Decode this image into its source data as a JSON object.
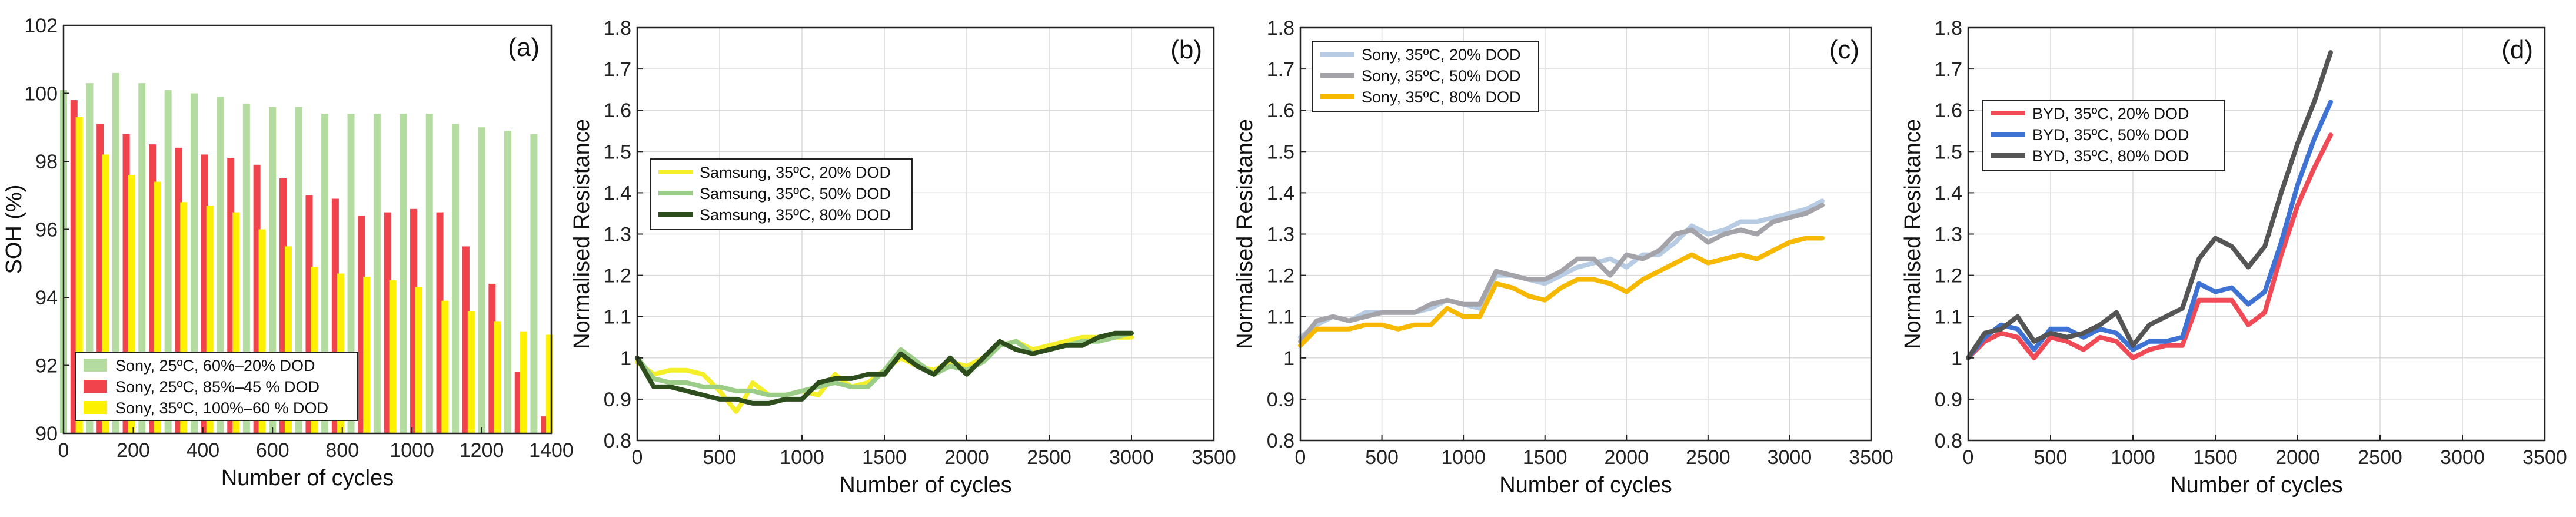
{
  "chart_data": [
    {
      "type": "bar",
      "panel_label": "(a)",
      "xlabel": "Number of cycles",
      "ylabel": "SOH (%)",
      "xlim": [
        0,
        1400
      ],
      "ylim": [
        90,
        102
      ],
      "xticks": [
        0,
        200,
        400,
        600,
        800,
        1000,
        1200,
        1400
      ],
      "yticks": [
        90,
        92,
        94,
        96,
        98,
        100,
        102
      ],
      "legend_position": "bottom-left",
      "series": [
        {
          "name": "Sony, 25ºC, 60%–20% DOD",
          "color": "#b5dca0",
          "x": [
            0,
            75,
            150,
            225,
            300,
            375,
            450,
            525,
            600,
            675,
            750,
            825,
            900,
            975,
            1050,
            1125,
            1200,
            1275,
            1350
          ],
          "values": [
            100.1,
            100.3,
            100.6,
            100.3,
            100.1,
            100.0,
            99.9,
            99.7,
            99.6,
            99.6,
            99.4,
            99.4,
            99.4,
            99.4,
            99.4,
            99.1,
            99.0,
            98.9,
            98.8
          ]
        },
        {
          "name": "Sony, 25ºC, 85%–45 % DOD",
          "color": "#f0434b",
          "x": [
            30,
            105,
            180,
            255,
            330,
            405,
            480,
            555,
            630,
            705,
            780,
            855,
            930,
            1005,
            1080,
            1155,
            1230,
            1305,
            1380
          ],
          "values": [
            99.8,
            99.1,
            98.8,
            98.5,
            98.4,
            98.2,
            98.1,
            97.9,
            97.5,
            97.0,
            96.9,
            96.4,
            96.5,
            96.6,
            96.5,
            95.5,
            94.4,
            91.8,
            90.5
          ]
        },
        {
          "name": "Sony, 35ºC, 100%–60 % DOD",
          "color": "#fdf000",
          "x": [
            45,
            120,
            195,
            270,
            345,
            420,
            495,
            570,
            645,
            720,
            795,
            870,
            945,
            1020,
            1095,
            1170,
            1245,
            1320,
            1395
          ],
          "values": [
            99.3,
            98.2,
            97.6,
            97.4,
            96.8,
            96.7,
            96.5,
            96.0,
            95.5,
            94.9,
            94.7,
            94.6,
            94.5,
            94.3,
            93.9,
            93.6,
            93.3,
            93.0,
            92.9
          ]
        }
      ]
    },
    {
      "type": "line",
      "panel_label": "(b)",
      "xlabel": "Number of cycles",
      "ylabel": "Normalised Resistance",
      "xlim": [
        0,
        3500
      ],
      "ylim": [
        0.8,
        1.8
      ],
      "xticks": [
        0,
        500,
        1000,
        1500,
        2000,
        2500,
        3000,
        3500
      ],
      "yticks": [
        0.8,
        0.9,
        1,
        1.1,
        1.2,
        1.3,
        1.4,
        1.5,
        1.6,
        1.7,
        1.8
      ],
      "legend_position": "middle-left",
      "series": [
        {
          "name": "Samsung, 35ºC, 20% DOD",
          "color": "#f5ef2a",
          "x": [
            0,
            100,
            200,
            300,
            400,
            500,
            600,
            650,
            700,
            800,
            900,
            1000,
            1100,
            1200,
            1300,
            1400,
            1500,
            1600,
            1700,
            1800,
            1900,
            2000,
            2100,
            2200,
            2300,
            2400,
            2500,
            2600,
            2700,
            2800,
            2900,
            3000
          ],
          "values": [
            0.99,
            0.96,
            0.97,
            0.97,
            0.96,
            0.92,
            0.87,
            0.9,
            0.94,
            0.91,
            0.91,
            0.92,
            0.91,
            0.96,
            0.93,
            0.94,
            0.97,
            1.0,
            0.98,
            0.97,
            0.99,
            0.98,
            1.0,
            1.03,
            1.04,
            1.02,
            1.03,
            1.04,
            1.05,
            1.05,
            1.05,
            1.05
          ]
        },
        {
          "name": "Samsung, 35ºC, 50% DOD",
          "color": "#9bcc88",
          "x": [
            0,
            100,
            200,
            300,
            400,
            500,
            600,
            700,
            800,
            900,
            1000,
            1100,
            1200,
            1300,
            1400,
            1500,
            1600,
            1700,
            1800,
            1900,
            2000,
            2100,
            2200,
            2300,
            2400,
            2500,
            2600,
            2700,
            2800,
            2900,
            3000
          ],
          "values": [
            1.0,
            0.95,
            0.94,
            0.94,
            0.93,
            0.93,
            0.92,
            0.92,
            0.91,
            0.91,
            0.92,
            0.93,
            0.94,
            0.93,
            0.93,
            0.97,
            1.02,
            0.99,
            0.96,
            0.98,
            0.97,
            0.99,
            1.03,
            1.04,
            1.01,
            1.02,
            1.03,
            1.04,
            1.04,
            1.05,
            1.06
          ]
        },
        {
          "name": "Samsung, 35ºC, 80% DOD",
          "color": "#2e4d1c",
          "x": [
            0,
            100,
            200,
            300,
            400,
            500,
            600,
            700,
            800,
            900,
            1000,
            1100,
            1200,
            1300,
            1400,
            1500,
            1600,
            1700,
            1800,
            1900,
            2000,
            2100,
            2200,
            2300,
            2400,
            2500,
            2600,
            2700,
            2800,
            2900,
            3000
          ],
          "values": [
            1.0,
            0.93,
            0.93,
            0.92,
            0.91,
            0.9,
            0.9,
            0.89,
            0.89,
            0.9,
            0.9,
            0.94,
            0.95,
            0.95,
            0.96,
            0.96,
            1.01,
            0.98,
            0.96,
            1.0,
            0.96,
            1.0,
            1.04,
            1.02,
            1.01,
            1.02,
            1.03,
            1.03,
            1.05,
            1.06,
            1.06
          ]
        }
      ]
    },
    {
      "type": "line",
      "panel_label": "(c)",
      "xlabel": "Number of cycles",
      "ylabel": "Normalised Resistance",
      "xlim": [
        0,
        3500
      ],
      "ylim": [
        0.8,
        1.8
      ],
      "xticks": [
        0,
        500,
        1000,
        1500,
        2000,
        2500,
        3000,
        3500
      ],
      "yticks": [
        0.8,
        0.9,
        1,
        1.1,
        1.2,
        1.3,
        1.4,
        1.5,
        1.6,
        1.7,
        1.8
      ],
      "legend_position": "top-left",
      "series": [
        {
          "name": "Sony, 35ºC, 20% DOD",
          "color": "#b7cce3",
          "x": [
            0,
            100,
            200,
            300,
            400,
            500,
            600,
            700,
            800,
            900,
            1000,
            1100,
            1200,
            1300,
            1400,
            1500,
            1600,
            1700,
            1800,
            1900,
            2000,
            2100,
            2200,
            2300,
            2400,
            2500,
            2600,
            2700,
            2800,
            2900,
            3000,
            3100,
            3200
          ],
          "values": [
            1.05,
            1.08,
            1.1,
            1.09,
            1.11,
            1.11,
            1.11,
            1.11,
            1.12,
            1.14,
            1.13,
            1.12,
            1.2,
            1.2,
            1.19,
            1.18,
            1.2,
            1.22,
            1.23,
            1.24,
            1.22,
            1.25,
            1.25,
            1.28,
            1.32,
            1.3,
            1.31,
            1.33,
            1.33,
            1.34,
            1.35,
            1.36,
            1.38
          ]
        },
        {
          "name": "Sony, 35ºC, 50% DOD",
          "color": "#a3a3a9",
          "x": [
            0,
            100,
            200,
            300,
            400,
            500,
            600,
            700,
            800,
            900,
            1000,
            1100,
            1200,
            1300,
            1400,
            1500,
            1600,
            1700,
            1800,
            1900,
            2000,
            2100,
            2200,
            2300,
            2400,
            2500,
            2600,
            2700,
            2800,
            2900,
            3000,
            3100,
            3200
          ],
          "values": [
            1.04,
            1.09,
            1.1,
            1.09,
            1.1,
            1.11,
            1.11,
            1.11,
            1.13,
            1.14,
            1.13,
            1.13,
            1.21,
            1.2,
            1.19,
            1.19,
            1.21,
            1.24,
            1.24,
            1.2,
            1.25,
            1.24,
            1.26,
            1.3,
            1.31,
            1.28,
            1.3,
            1.31,
            1.3,
            1.33,
            1.34,
            1.35,
            1.37
          ]
        },
        {
          "name": "Sony, 35ºC, 80% DOD",
          "color": "#f7b800",
          "x": [
            0,
            100,
            200,
            300,
            400,
            500,
            600,
            700,
            800,
            900,
            1000,
            1100,
            1200,
            1300,
            1400,
            1500,
            1600,
            1700,
            1800,
            1900,
            2000,
            2100,
            2200,
            2300,
            2400,
            2500,
            2600,
            2700,
            2800,
            2900,
            3000,
            3100,
            3200
          ],
          "values": [
            1.03,
            1.07,
            1.07,
            1.07,
            1.08,
            1.08,
            1.07,
            1.08,
            1.08,
            1.12,
            1.1,
            1.1,
            1.18,
            1.17,
            1.15,
            1.14,
            1.17,
            1.19,
            1.19,
            1.18,
            1.16,
            1.19,
            1.21,
            1.23,
            1.25,
            1.23,
            1.24,
            1.25,
            1.24,
            1.26,
            1.28,
            1.29,
            1.29
          ]
        }
      ]
    },
    {
      "type": "line",
      "panel_label": "(d)",
      "xlabel": "Number of cycles",
      "ylabel": "Normalised Resistance",
      "xlim": [
        0,
        3500
      ],
      "ylim": [
        0.8,
        1.8
      ],
      "xticks": [
        0,
        500,
        1000,
        1500,
        2000,
        2500,
        3000,
        3500
      ],
      "yticks": [
        0.8,
        0.9,
        1,
        1.1,
        1.2,
        1.3,
        1.4,
        1.5,
        1.6,
        1.7,
        1.8
      ],
      "legend_position": "top-left",
      "series": [
        {
          "name": "BYD, 35ºC, 20% DOD",
          "color": "#ef4a55",
          "x": [
            0,
            100,
            200,
            300,
            400,
            500,
            600,
            700,
            800,
            900,
            1000,
            1100,
            1200,
            1300,
            1400,
            1500,
            1600,
            1700,
            1800,
            1900,
            2000,
            2100,
            2200
          ],
          "values": [
            1.0,
            1.04,
            1.06,
            1.05,
            1.0,
            1.05,
            1.04,
            1.02,
            1.05,
            1.04,
            1.0,
            1.02,
            1.03,
            1.03,
            1.14,
            1.14,
            1.14,
            1.08,
            1.11,
            1.25,
            1.37,
            1.46,
            1.54
          ]
        },
        {
          "name": "BYD, 35ºC, 50% DOD",
          "color": "#3f73d3",
          "x": [
            0,
            100,
            200,
            300,
            400,
            500,
            600,
            700,
            800,
            900,
            1000,
            1100,
            1200,
            1300,
            1400,
            1500,
            1600,
            1700,
            1800,
            1900,
            2000,
            2100,
            2200
          ],
          "values": [
            1.0,
            1.05,
            1.08,
            1.07,
            1.02,
            1.07,
            1.07,
            1.05,
            1.07,
            1.06,
            1.02,
            1.04,
            1.04,
            1.05,
            1.18,
            1.16,
            1.17,
            1.13,
            1.16,
            1.28,
            1.42,
            1.53,
            1.62
          ]
        },
        {
          "name": "BYD, 35ºC, 80% DOD",
          "color": "#555555",
          "x": [
            0,
            100,
            200,
            300,
            400,
            500,
            600,
            700,
            800,
            900,
            1000,
            1100,
            1200,
            1300,
            1400,
            1500,
            1600,
            1700,
            1800,
            1900,
            2000,
            2100,
            2200
          ],
          "values": [
            1.0,
            1.06,
            1.07,
            1.1,
            1.04,
            1.06,
            1.05,
            1.06,
            1.08,
            1.11,
            1.03,
            1.08,
            1.1,
            1.12,
            1.24,
            1.29,
            1.27,
            1.22,
            1.27,
            1.4,
            1.52,
            1.62,
            1.74
          ]
        }
      ]
    }
  ]
}
